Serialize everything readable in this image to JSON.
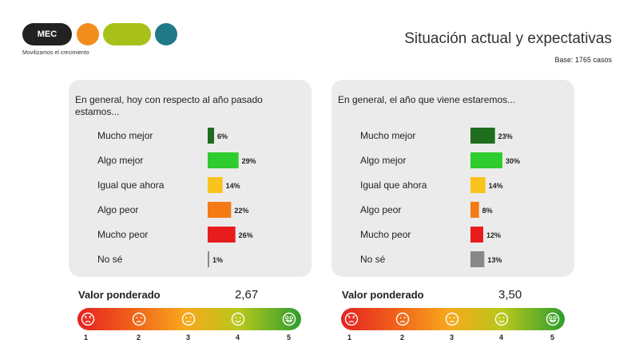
{
  "logo": {
    "text": "MEC",
    "tagline": "Movilizamos el crecimiento"
  },
  "header": {
    "title": "Situación actual y expectativas",
    "base": "Base: 1765 casos"
  },
  "colors": {
    "mucho_mejor": "#1e6e1e",
    "algo_mejor": "#2ecc2e",
    "igual": "#f9c21c",
    "algo_peor": "#f47a16",
    "mucho_peor": "#e81c1c",
    "no_se": "#888888"
  },
  "chart_data": [
    {
      "type": "bar",
      "title": "En general, hoy con respecto al año pasado estamos...",
      "categories": [
        "Mucho mejor",
        "Algo mejor",
        "Igual que ahora",
        "Algo peor",
        "Mucho peor",
        "No sé"
      ],
      "values": [
        6,
        29,
        14,
        22,
        26,
        1
      ],
      "labels": [
        "6%",
        "29%",
        "14%",
        "22%",
        "26%",
        "1%"
      ],
      "colors": [
        "#1e6e1e",
        "#2ecc2e",
        "#f9c21c",
        "#f47a16",
        "#e81c1c",
        "#888888"
      ],
      "xlim": [
        0,
        30
      ]
    },
    {
      "type": "bar",
      "title": "En general, el año que viene estaremos...",
      "categories": [
        "Mucho mejor",
        "Algo mejor",
        "Igual que ahora",
        "Algo peor",
        "Mucho peor",
        "No sé"
      ],
      "values": [
        23,
        30,
        14,
        8,
        12,
        13
      ],
      "labels": [
        "23%",
        "30%",
        "14%",
        "8%",
        "12%",
        "13%"
      ],
      "colors": [
        "#1e6e1e",
        "#2ecc2e",
        "#f9c21c",
        "#f47a16",
        "#e81c1c",
        "#888888"
      ],
      "xlim": [
        0,
        30
      ]
    }
  ],
  "weighted": [
    {
      "label": "Valor ponderado",
      "value": "2,67"
    },
    {
      "label": "Valor ponderado",
      "value": "3,50"
    }
  ],
  "scale_numbers": [
    "1",
    "2",
    "3",
    "4",
    "5"
  ]
}
